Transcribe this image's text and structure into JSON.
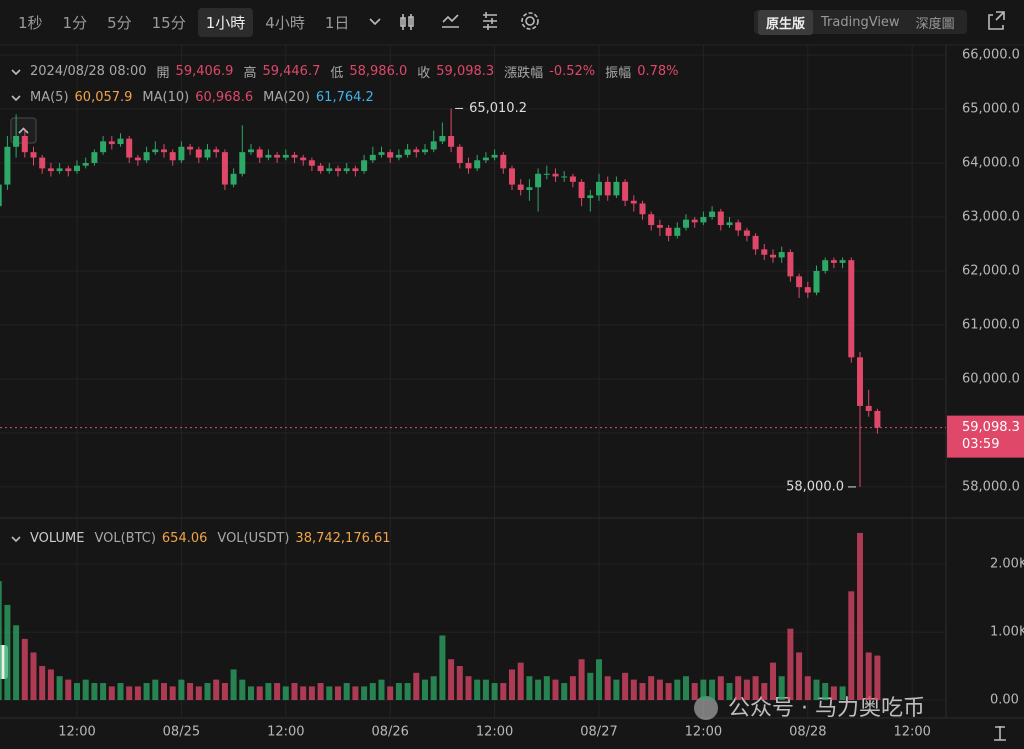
{
  "toolbar": {
    "intervals": [
      "1秒",
      "1分",
      "5分",
      "15分",
      "1小時",
      "4小時",
      "1日"
    ],
    "active_interval": 4,
    "views": [
      "原生版",
      "TradingView",
      "深度圖"
    ],
    "active_view": 0
  },
  "info": {
    "datetime": "2024/08/28 08:00",
    "ohlc": [
      {
        "label": "開",
        "value": "59,406.9"
      },
      {
        "label": "高",
        "value": "59,446.7"
      },
      {
        "label": "低",
        "value": "58,986.0"
      },
      {
        "label": "收",
        "value": "59,098.3"
      }
    ],
    "change_label": "漲跌幅",
    "change": "-0.52%",
    "amplitude_label": "振幅",
    "amplitude": "0.78%"
  },
  "ma": [
    {
      "name": "MA(5)",
      "value": "60,057.9",
      "color": "#f0a34a"
    },
    {
      "name": "MA(10)",
      "value": "60,968.6",
      "color": "#e0486a"
    },
    {
      "name": "MA(20)",
      "value": "61,764.2",
      "color": "#3fb4e6"
    }
  ],
  "volume_legend": {
    "title": "VOLUME",
    "series": [
      {
        "name": "VOL(BTC)",
        "value": "654.06"
      },
      {
        "name": "VOL(USDT)",
        "value": "38,742,176.61"
      }
    ]
  },
  "watermark": "公众号 · 马力奥吃币",
  "chart_data": {
    "type": "candlestick",
    "up_color": "#2ea866",
    "down_color": "#e0486a",
    "grid": true,
    "categories": [
      null,
      null,
      null,
      null,
      null,
      null,
      null,
      null,
      null,
      "12:00",
      null,
      null,
      null,
      null,
      null,
      null,
      null,
      null,
      null,
      null,
      null,
      "08/25",
      null,
      null,
      null,
      null,
      null,
      null,
      null,
      null,
      null,
      null,
      null,
      "12:00",
      null,
      null,
      null,
      null,
      null,
      null,
      null,
      null,
      null,
      null,
      null,
      "08/26",
      null,
      null,
      null,
      null,
      null,
      null,
      null,
      null,
      null,
      null,
      null,
      "12:00",
      null,
      null,
      null,
      null,
      null,
      null,
      null,
      null,
      null,
      null,
      null,
      "08/27",
      null,
      null,
      null,
      null,
      null,
      null,
      null,
      null,
      null,
      null,
      null,
      "12:00",
      null,
      null,
      null,
      null,
      null,
      null,
      null,
      null,
      null,
      null,
      null,
      "08/28",
      null,
      null,
      null,
      null,
      null,
      null,
      null,
      null,
      null,
      null,
      null,
      "12:00",
      null,
      null,
      null
    ],
    "open": [
      63200,
      63600,
      64300,
      64500,
      64200,
      64100,
      63900,
      63850,
      63900,
      63850,
      63950,
      64000,
      64200,
      64400,
      64350,
      64450,
      64100,
      64050,
      64200,
      64250,
      64200,
      64050,
      64300,
      64250,
      64100,
      64250,
      64200,
      63600,
      63800,
      64200,
      64250,
      64100,
      64150,
      64100,
      64150,
      64100,
      64050,
      63950,
      63850,
      63900,
      63850,
      63900,
      63850,
      64050,
      64150,
      64200,
      64100,
      64150,
      64250,
      64200,
      64250,
      64400,
      64500,
      64300,
      64000,
      63900,
      64050,
      64100,
      64150,
      63900,
      63600,
      63500,
      63550,
      63800,
      63800,
      63750,
      63750,
      63650,
      63350,
      63400,
      63650,
      63400,
      63650,
      63300,
      63250,
      63050,
      62850,
      62800,
      62650,
      62800,
      62950,
      62900,
      63000,
      63100,
      62850,
      62900,
      62750,
      62650,
      62400,
      62300,
      62250,
      62350,
      61900,
      61700,
      61600,
      62000,
      62200,
      62150,
      62200,
      60400,
      59500,
      59406.9,
      null,
      null,
      null,
      null,
      null,
      null,
      null
    ],
    "high": [
      63700,
      64500,
      64900,
      64600,
      64300,
      64150,
      64000,
      64000,
      63950,
      64050,
      64100,
      64250,
      64500,
      64500,
      64550,
      64500,
      64150,
      64300,
      64400,
      64350,
      64250,
      64400,
      64350,
      64300,
      64350,
      64300,
      64250,
      63900,
      64700,
      64350,
      64300,
      64250,
      64200,
      64250,
      64200,
      64150,
      64100,
      64000,
      64000,
      63950,
      64000,
      63950,
      64150,
      64300,
      64300,
      64250,
      64250,
      64350,
      64300,
      64350,
      64600,
      64750,
      65010.2,
      64350,
      64100,
      64150,
      64200,
      64250,
      64200,
      63950,
      63700,
      63700,
      63900,
      63950,
      63900,
      63850,
      63800,
      63700,
      63500,
      63800,
      63750,
      63750,
      63700,
      63400,
      63300,
      63100,
      62950,
      62850,
      62900,
      63050,
      63000,
      63100,
      63200,
      63150,
      63000,
      62950,
      62800,
      62700,
      62500,
      62400,
      62450,
      62400,
      61950,
      61800,
      62100,
      62250,
      62250,
      62250,
      62250,
      60500,
      59800,
      59446.7,
      null,
      null,
      null,
      null,
      null,
      null,
      null
    ],
    "low": [
      63100,
      63500,
      64100,
      64100,
      63950,
      63800,
      63750,
      63800,
      63750,
      63800,
      63900,
      63950,
      64150,
      64250,
      64300,
      64000,
      63950,
      64000,
      64150,
      64100,
      63950,
      64000,
      64150,
      64000,
      64050,
      64100,
      63500,
      63550,
      63750,
      64150,
      64000,
      64050,
      64000,
      64050,
      64000,
      63950,
      63850,
      63800,
      63800,
      63750,
      63800,
      63750,
      63800,
      64000,
      64100,
      64000,
      64050,
      64100,
      64100,
      64150,
      64200,
      64350,
      64200,
      63900,
      63800,
      63850,
      64000,
      64050,
      63800,
      63500,
      63400,
      63300,
      63100,
      63700,
      63650,
      63650,
      63550,
      63200,
      63100,
      63300,
      63300,
      63350,
      63200,
      63100,
      62950,
      62750,
      62650,
      62550,
      62600,
      62750,
      62800,
      62850,
      62950,
      62750,
      62800,
      62650,
      62550,
      62300,
      62200,
      62150,
      62150,
      61800,
      61500,
      61500,
      61550,
      61950,
      62050,
      62050,
      60300,
      58000,
      59300,
      58986.0,
      null,
      null,
      null,
      null,
      null,
      null,
      null
    ],
    "close": [
      63600,
      64300,
      64500,
      64200,
      64100,
      63900,
      63850,
      63900,
      63850,
      63950,
      64000,
      64200,
      64400,
      64350,
      64450,
      64100,
      64050,
      64200,
      64250,
      64200,
      64050,
      64300,
      64250,
      64100,
      64250,
      64200,
      63600,
      63800,
      64200,
      64250,
      64100,
      64150,
      64100,
      64150,
      64100,
      64050,
      63950,
      63850,
      63900,
      63850,
      63900,
      63850,
      64050,
      64150,
      64200,
      64100,
      64150,
      64250,
      64200,
      64250,
      64400,
      64500,
      64300,
      64000,
      63900,
      64050,
      64100,
      64150,
      63900,
      63600,
      63500,
      63550,
      63800,
      63800,
      63750,
      63750,
      63650,
      63350,
      63400,
      63650,
      63400,
      63650,
      63300,
      63250,
      63050,
      62850,
      62800,
      62650,
      62800,
      62950,
      62900,
      63000,
      63100,
      62850,
      62900,
      62750,
      62650,
      62400,
      62300,
      62250,
      62350,
      61900,
      61700,
      61600,
      62000,
      62200,
      62150,
      62200,
      60400,
      59500,
      59406.9,
      59098.3,
      null,
      null,
      null,
      null,
      null,
      null,
      null
    ],
    "volume": [
      1750,
      1400,
      1100,
      900,
      700,
      500,
      450,
      350,
      300,
      250,
      300,
      250,
      250,
      200,
      250,
      200,
      200,
      250,
      300,
      250,
      200,
      300,
      250,
      200,
      250,
      300,
      250,
      450,
      300,
      200,
      200,
      250,
      250,
      200,
      250,
      200,
      200,
      250,
      200,
      200,
      250,
      200,
      200,
      250,
      300,
      200,
      250,
      250,
      400,
      300,
      350,
      950,
      600,
      500,
      350,
      300,
      300,
      250,
      250,
      450,
      550,
      350,
      300,
      350,
      300,
      250,
      350,
      600,
      400,
      600,
      350,
      300,
      400,
      300,
      250,
      350,
      300,
      250,
      300,
      350,
      250,
      300,
      300,
      350,
      250,
      350,
      300,
      350,
      250,
      550,
      350,
      1050,
      700,
      350,
      300,
      250,
      200,
      200,
      1600,
      2460,
      700,
      654.06,
      null,
      null,
      null,
      null,
      null,
      null,
      null
    ],
    "ylim": [
      57480,
      66185
    ],
    "yticks": [
      {
        "value": 58000,
        "label": "58,000.0"
      },
      {
        "value": 59000,
        "label": "59,000.0"
      },
      {
        "value": 60000,
        "label": "60,000.0"
      },
      {
        "value": 61000,
        "label": "61,000.0"
      },
      {
        "value": 62000,
        "label": "62,000.0"
      },
      {
        "value": 63000,
        "label": "63,000.0"
      },
      {
        "value": 64000,
        "label": "64,000.0"
      },
      {
        "value": 65000,
        "label": "65,000.0"
      },
      {
        "value": 66000,
        "label": "66,000.0"
      }
    ],
    "vlim": [
      -265,
      2650
    ],
    "vticks": [
      {
        "value": 0,
        "label": "0.00"
      },
      {
        "value": 1000,
        "label": "1.00K"
      },
      {
        "value": 2000,
        "label": "2.00K"
      }
    ],
    "high_marker": {
      "value": 65010.2,
      "label": "65,010.2"
    },
    "low_marker": {
      "value": 58000,
      "label": "58,000.0"
    },
    "last_price": {
      "value": 59098.3,
      "label": "59,098.3",
      "countdown": "03:59"
    }
  }
}
